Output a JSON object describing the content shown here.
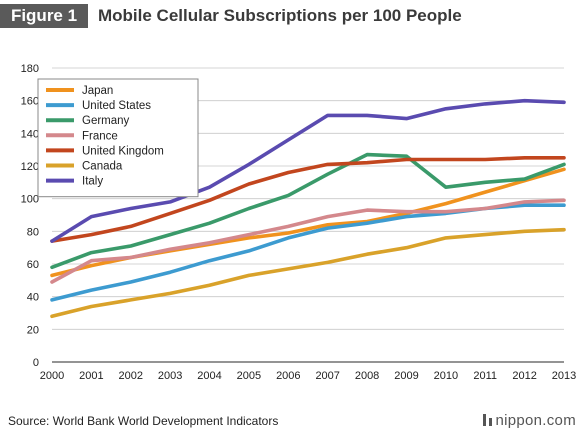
{
  "header": {
    "figure_label": "Figure 1",
    "title": "Mobile Cellular Subscriptions per 100 People"
  },
  "footer": {
    "source": "Source: World Bank World Development Indicators",
    "brand": "nippon.com"
  },
  "chart_data": {
    "type": "line",
    "title": "Mobile Cellular Subscriptions per 100 People",
    "xlabel": "",
    "ylabel": "",
    "x": [
      2000,
      2001,
      2002,
      2003,
      2004,
      2005,
      2006,
      2007,
      2008,
      2009,
      2010,
      2011,
      2012,
      2013
    ],
    "y_ticks": [
      0,
      20,
      40,
      60,
      80,
      100,
      120,
      140,
      160,
      180
    ],
    "ylim": [
      0,
      180
    ],
    "grid": true,
    "legend_position": "top-left",
    "series": [
      {
        "name": "Japan",
        "color": "#f0921e",
        "values": [
          53,
          59,
          64,
          68,
          72,
          76,
          79,
          84,
          86,
          91,
          97,
          104,
          111,
          118
        ]
      },
      {
        "name": "United States",
        "color": "#3d9bd0",
        "values": [
          38,
          44,
          49,
          55,
          62,
          68,
          76,
          82,
          85,
          89,
          91,
          94,
          96,
          96
        ]
      },
      {
        "name": "Germany",
        "color": "#3a9a6a",
        "values": [
          58,
          67,
          71,
          78,
          85,
          94,
          102,
          115,
          127,
          126,
          107,
          110,
          112,
          121
        ]
      },
      {
        "name": "France",
        "color": "#d4888c",
        "values": [
          49,
          62,
          64,
          69,
          73,
          78,
          83,
          89,
          93,
          92,
          92,
          94,
          98,
          99
        ]
      },
      {
        "name": "United Kingdom",
        "color": "#c2461e",
        "values": [
          74,
          78,
          83,
          91,
          99,
          109,
          116,
          121,
          122,
          124,
          124,
          124,
          125,
          125
        ]
      },
      {
        "name": "Canada",
        "color": "#d9a22a",
        "values": [
          28,
          34,
          38,
          42,
          47,
          53,
          57,
          61,
          66,
          70,
          76,
          78,
          80,
          81
        ]
      },
      {
        "name": "Italy",
        "color": "#5a4bb0",
        "values": [
          74,
          89,
          94,
          98,
          107,
          121,
          136,
          151,
          151,
          149,
          155,
          158,
          160,
          159
        ]
      }
    ]
  }
}
